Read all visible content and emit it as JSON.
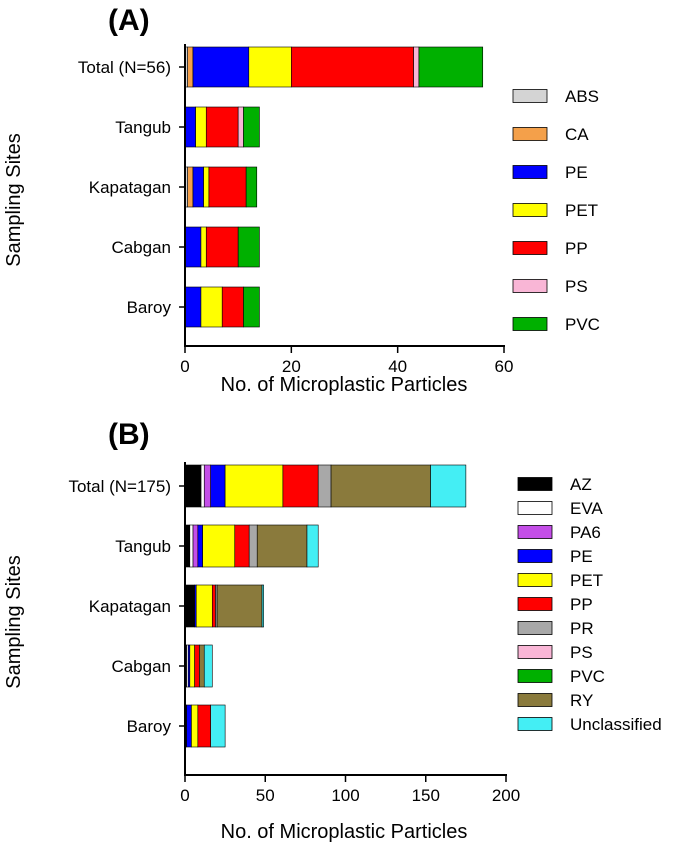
{
  "chart_data": [
    {
      "panel_label": "(A)",
      "type": "bar",
      "orientation": "horizontal",
      "stacked": true,
      "xlabel": "No. of Microplastic Particles",
      "ylabel": "Sampling Sites",
      "xlim": [
        0,
        60
      ],
      "xticks": [
        "0",
        "20",
        "40",
        "60"
      ],
      "categories": [
        "Total (N=56)",
        "Tangub",
        "Kapatagan",
        "Cabgan",
        "Baroy"
      ],
      "legend_position": "right",
      "series": [
        {
          "name": "ABS",
          "color": "#d4d4d4",
          "values": [
            0.5,
            0,
            0.5,
            0,
            0
          ]
        },
        {
          "name": "CA",
          "color": "#f4a04a",
          "values": [
            1,
            0,
            1,
            0,
            0
          ]
        },
        {
          "name": "PE",
          "color": "#0000ff",
          "values": [
            10.5,
            2,
            2,
            3,
            3
          ]
        },
        {
          "name": "PET",
          "color": "#ffff00",
          "values": [
            8,
            2,
            1,
            1,
            4
          ]
        },
        {
          "name": "PP",
          "color": "#ff0000",
          "values": [
            23,
            6,
            7,
            6,
            4
          ]
        },
        {
          "name": "PS",
          "color": "#f9b6d6",
          "values": [
            1,
            1,
            0,
            0,
            0
          ]
        },
        {
          "name": "PVC",
          "color": "#00b000",
          "values": [
            12,
            3,
            2,
            4,
            3
          ]
        }
      ]
    },
    {
      "panel_label": "(B)",
      "type": "bar",
      "orientation": "horizontal",
      "stacked": true,
      "xlabel": "No. of Microplastic Particles",
      "ylabel": "Sampling Sites",
      "xlim": [
        0,
        200
      ],
      "xticks": [
        "0",
        "50",
        "100",
        "150",
        "200"
      ],
      "categories": [
        "Total (N=175)",
        "Tangub",
        "Kapatagan",
        "Cabgan",
        "Baroy"
      ],
      "legend_position": "right",
      "series": [
        {
          "name": "AZ",
          "color": "#000000",
          "values": [
            10,
            3,
            6,
            1,
            1
          ]
        },
        {
          "name": "EVA",
          "color": "#ffffff",
          "values": [
            2,
            2,
            0,
            1,
            0
          ]
        },
        {
          "name": "PA6",
          "color": "#c44ee8",
          "values": [
            4,
            3,
            0,
            0,
            0
          ]
        },
        {
          "name": "PE",
          "color": "#0000ff",
          "values": [
            9,
            3,
            1,
            1,
            3
          ]
        },
        {
          "name": "PET",
          "color": "#ffff00",
          "values": [
            36,
            20,
            10,
            3,
            4
          ]
        },
        {
          "name": "PP",
          "color": "#ff0000",
          "values": [
            22,
            9,
            2,
            3,
            8
          ]
        },
        {
          "name": "PR",
          "color": "#a8a8a8",
          "values": [
            8,
            5,
            1,
            0,
            0
          ]
        },
        {
          "name": "PS",
          "color": "#f9b6d6",
          "values": [
            0,
            0,
            0,
            0,
            0
          ]
        },
        {
          "name": "PVC",
          "color": "#00b000",
          "values": [
            0,
            0,
            0,
            0,
            0
          ]
        },
        {
          "name": "RY",
          "color": "#8a7a3c",
          "values": [
            62,
            31,
            28,
            3,
            0
          ]
        },
        {
          "name": "Unclassified",
          "color": "#44eef4",
          "values": [
            22,
            7,
            1,
            5,
            9
          ]
        }
      ]
    }
  ]
}
